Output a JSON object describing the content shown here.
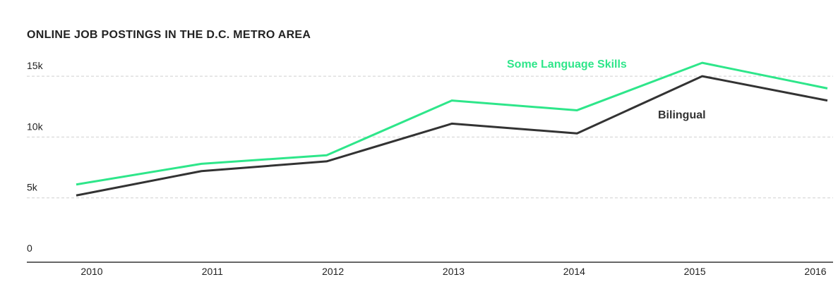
{
  "chart_data": {
    "type": "line",
    "title": "ONLINE JOB POSTINGS IN THE D.C. METRO AREA",
    "categories": [
      "2010",
      "2011",
      "2012",
      "2013",
      "2014",
      "2015",
      "2016"
    ],
    "series": [
      {
        "name": "Some Language Skills",
        "color": "#2ee68a",
        "values": [
          6100,
          7800,
          8500,
          13000,
          12200,
          16100,
          14000
        ]
      },
      {
        "name": "Bilingual",
        "color": "#333333",
        "values": [
          5200,
          7200,
          8000,
          11100,
          10300,
          15000,
          13000
        ]
      }
    ],
    "ylim": [
      0,
      17000
    ],
    "yticks": [
      0,
      {
        "value": 5000,
        "label": "5k"
      },
      {
        "value": 10000,
        "label": "10k"
      },
      {
        "value": 15000,
        "label": "15k"
      }
    ],
    "grid": true
  }
}
